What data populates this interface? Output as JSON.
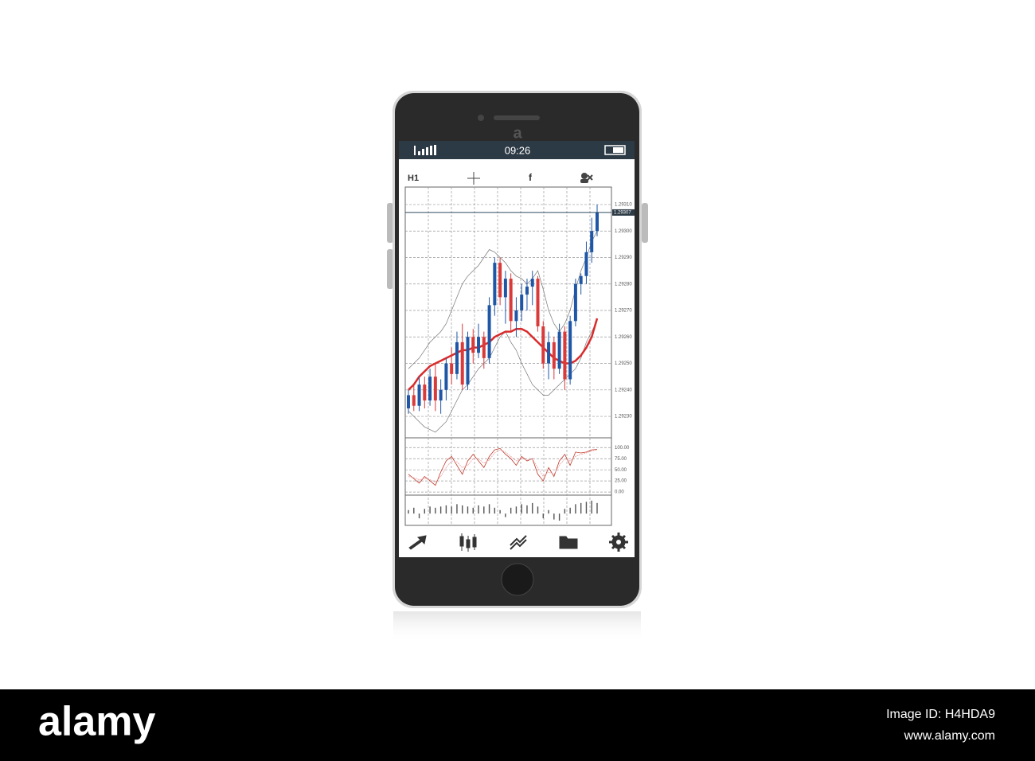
{
  "status_bar": {
    "time": "09:26"
  },
  "toolbar": {
    "timeframe": "H1",
    "indicator": "f"
  },
  "chart_data": {
    "type": "candlestick",
    "ylim": [
      1.292225,
      1.293166
    ],
    "yticks": [
      {
        "value": 1.2923,
        "label": "1.29230"
      },
      {
        "value": 1.2924,
        "label": "1.29240"
      },
      {
        "value": 1.2925,
        "label": "1.29250"
      },
      {
        "value": 1.2926,
        "label": "1.29260"
      },
      {
        "value": 1.2927,
        "label": "1.29270"
      },
      {
        "value": 1.2928,
        "label": "1.29280"
      },
      {
        "value": 1.2929,
        "label": "1.29290"
      },
      {
        "value": 1.293,
        "label": "1.29300"
      },
      {
        "value": 1.2931,
        "label": "1.29310"
      }
    ],
    "grid": true,
    "last_price": 1.29307,
    "up_color": "#1f56a6",
    "down_color": "#d93a3a",
    "candles": {
      "open": [
        1.29233,
        1.29238,
        1.29234,
        1.29242,
        1.29236,
        1.29245,
        1.29236,
        1.2924,
        1.2925,
        1.29246,
        1.29258,
        1.29242,
        1.2926,
        1.29254,
        1.2926,
        1.29252,
        1.29272,
        1.29288,
        1.29275,
        1.29282,
        1.29266,
        1.2927,
        1.29276,
        1.29279,
        1.29282,
        1.29264,
        1.2925,
        1.29258,
        1.29248,
        1.29262,
        1.29244,
        1.29266,
        1.2928,
        1.29283,
        1.29292,
        1.293
      ],
      "high": [
        1.2924,
        1.29242,
        1.29245,
        1.29245,
        1.29248,
        1.2925,
        1.29244,
        1.29252,
        1.29256,
        1.29262,
        1.29265,
        1.29262,
        1.29263,
        1.29265,
        1.29262,
        1.29275,
        1.2929,
        1.2929,
        1.29285,
        1.29284,
        1.29275,
        1.2928,
        1.29282,
        1.29285,
        1.29283,
        1.29266,
        1.29262,
        1.2926,
        1.29265,
        1.29264,
        1.29268,
        1.29282,
        1.29284,
        1.29296,
        1.29305,
        1.2931
      ],
      "low": [
        1.29231,
        1.29232,
        1.29232,
        1.29233,
        1.29234,
        1.29232,
        1.29231,
        1.29236,
        1.29242,
        1.29244,
        1.2924,
        1.2924,
        1.2925,
        1.29252,
        1.29248,
        1.2925,
        1.29268,
        1.29272,
        1.29265,
        1.29262,
        1.2926,
        1.29266,
        1.2927,
        1.29272,
        1.29262,
        1.29248,
        1.29244,
        1.29244,
        1.29246,
        1.2924,
        1.29242,
        1.29264,
        1.29276,
        1.2928,
        1.29288,
        1.29298
      ],
      "close": [
        1.29238,
        1.29234,
        1.29242,
        1.29236,
        1.29245,
        1.29236,
        1.2924,
        1.2925,
        1.29246,
        1.29258,
        1.29242,
        1.2926,
        1.29254,
        1.2926,
        1.29252,
        1.29272,
        1.29288,
        1.29275,
        1.29282,
        1.29266,
        1.2927,
        1.29276,
        1.29279,
        1.29282,
        1.29264,
        1.2925,
        1.29258,
        1.29248,
        1.29262,
        1.29244,
        1.29266,
        1.2928,
        1.29283,
        1.29292,
        1.293,
        1.29307
      ]
    },
    "moving_average": {
      "color": "#d92b2b",
      "values": [
        1.2924,
        1.29242,
        1.29245,
        1.29247,
        1.29249,
        1.2925,
        1.29251,
        1.29252,
        1.29253,
        1.29254,
        1.29255,
        1.29255,
        1.29256,
        1.29256,
        1.29257,
        1.29258,
        1.2926,
        1.29261,
        1.29262,
        1.29262,
        1.29263,
        1.29263,
        1.29262,
        1.2926,
        1.29258,
        1.29256,
        1.29254,
        1.29252,
        1.29251,
        1.2925,
        1.2925,
        1.29251,
        1.29253,
        1.29256,
        1.2926,
        1.29267
      ]
    },
    "bands": {
      "color": "#777777",
      "upper": [
        1.29248,
        1.2925,
        1.29252,
        1.29255,
        1.29258,
        1.2926,
        1.29262,
        1.29265,
        1.2927,
        1.29275,
        1.2928,
        1.29283,
        1.29285,
        1.29287,
        1.2929,
        1.29293,
        1.29292,
        1.2929,
        1.29288,
        1.29285,
        1.29283,
        1.29282,
        1.2928,
        1.29282,
        1.29285,
        1.29278,
        1.2927,
        1.29265,
        1.29262,
        1.29265,
        1.2927,
        1.29278,
        1.29285,
        1.2929,
        1.29296,
        1.293
      ],
      "lower": [
        1.29232,
        1.2923,
        1.29228,
        1.29226,
        1.29225,
        1.29224,
        1.29226,
        1.29228,
        1.29232,
        1.29236,
        1.2924,
        1.29242,
        1.29245,
        1.29248,
        1.2925,
        1.29252,
        1.29256,
        1.2926,
        1.29262,
        1.29258,
        1.29255,
        1.2925,
        1.29246,
        1.29242,
        1.2924,
        1.29238,
        1.29238,
        1.2924,
        1.29242,
        1.29244,
        1.29246,
        1.29248,
        1.29252,
        1.29258,
        1.29262,
        1.29266
      ]
    },
    "oscillator": {
      "ylim": [
        -7,
        122
      ],
      "yticks": [
        {
          "value": 0,
          "label": "0.00"
        },
        {
          "value": 25,
          "label": "25.00"
        },
        {
          "value": 50,
          "label": "50.00"
        },
        {
          "value": 75,
          "label": "75.00"
        },
        {
          "value": 100,
          "label": "100.00"
        }
      ],
      "series": [
        {
          "color": "#c0392b",
          "values": [
            40,
            30,
            20,
            35,
            25,
            15,
            45,
            70,
            80,
            60,
            40,
            70,
            85,
            70,
            55,
            80,
            95,
            98,
            85,
            75,
            60,
            80,
            70,
            75,
            40,
            25,
            55,
            35,
            70,
            85,
            60,
            90,
            88,
            90,
            95,
            96
          ]
        },
        {
          "color": "#e8a0a0",
          "values": [
            35,
            32,
            28,
            30,
            28,
            22,
            35,
            55,
            70,
            68,
            55,
            60,
            75,
            75,
            65,
            72,
            88,
            95,
            90,
            80,
            70,
            75,
            72,
            74,
            55,
            35,
            45,
            40,
            60,
            75,
            70,
            80,
            85,
            88,
            92,
            95
          ]
        }
      ]
    },
    "histogram": {
      "ylim": [
        -1,
        1.5
      ],
      "color": "#555555",
      "values": [
        0.3,
        0.5,
        -0.4,
        0.4,
        0.6,
        0.5,
        0.6,
        0.7,
        0.6,
        0.8,
        0.7,
        0.6,
        0.5,
        0.7,
        0.6,
        0.8,
        0.5,
        0.3,
        -0.3,
        0.5,
        0.6,
        0.8,
        0.7,
        0.9,
        0.6,
        -0.4,
        0.3,
        -0.5,
        -0.6,
        0.4,
        0.5,
        0.8,
        0.9,
        1.0,
        1.1,
        0.9
      ]
    }
  },
  "watermark": {
    "phone_mark": "a",
    "brand": "alamy",
    "image_id": "Image ID: H4HDA9",
    "site": "www.alamy.com"
  }
}
